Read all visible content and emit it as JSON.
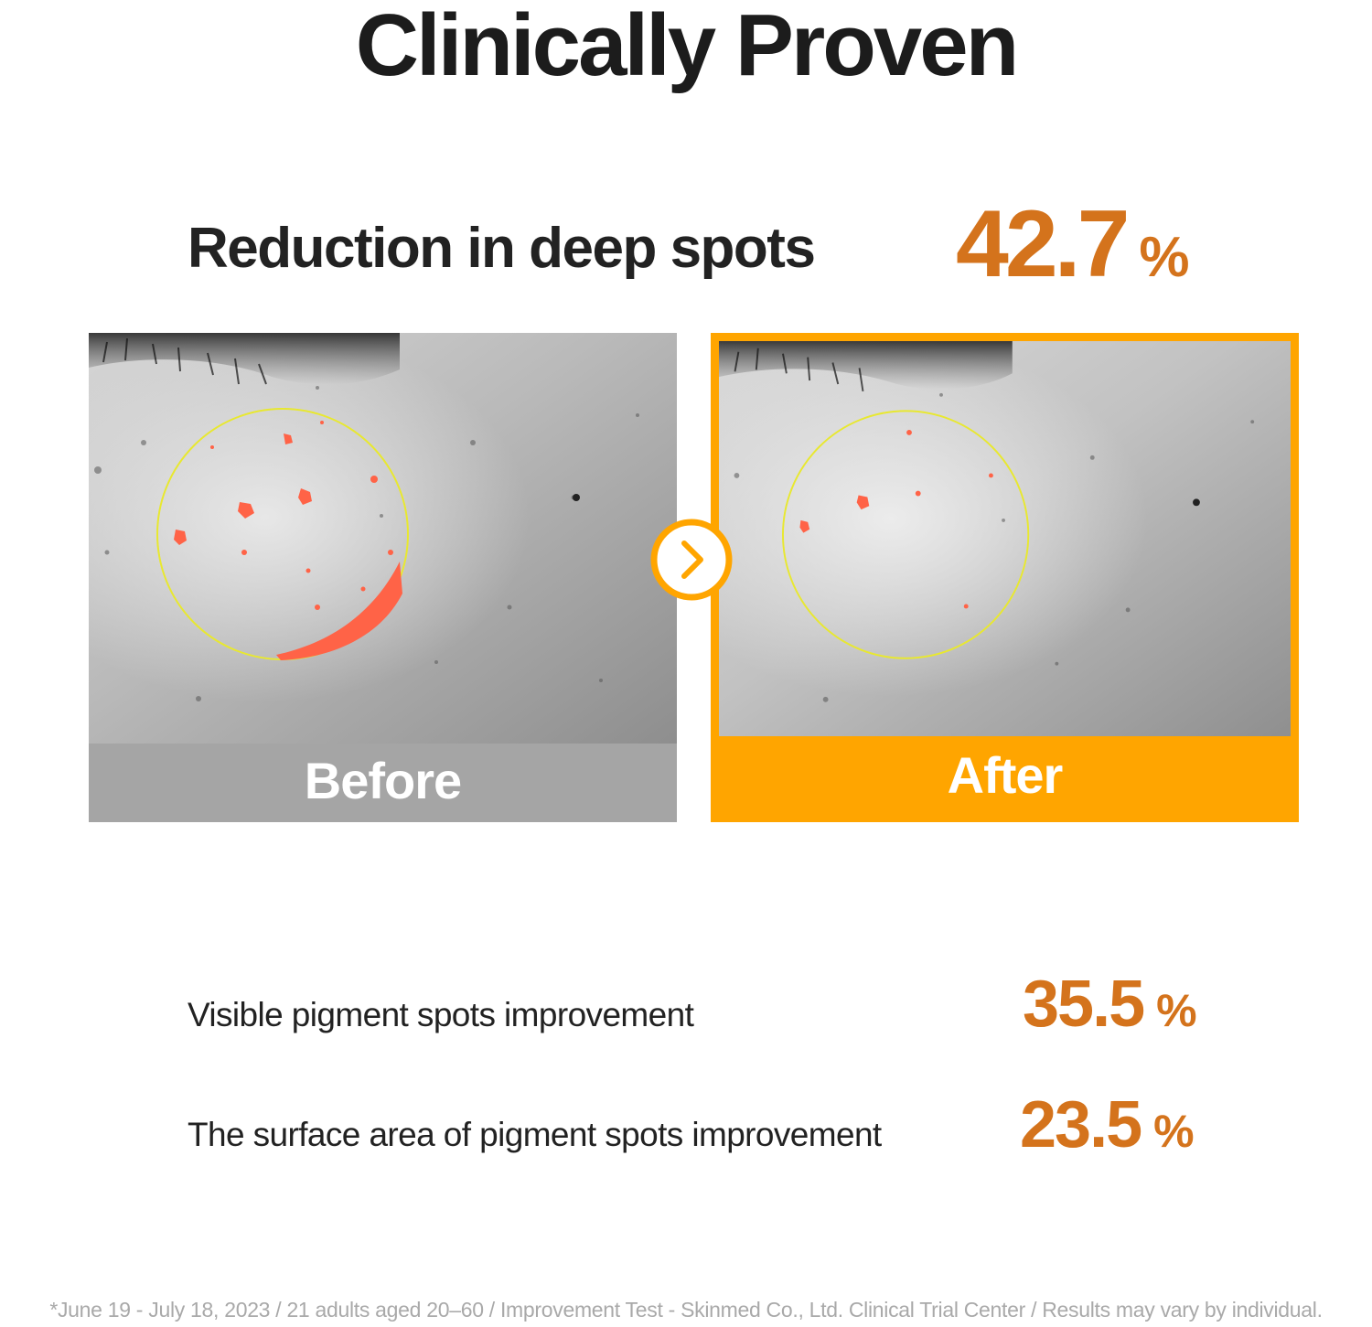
{
  "colors": {
    "accent": "#d4731c",
    "after_frame": "#ffa500",
    "before_caption_bg": "#a5a5a5",
    "spot_marker": "#ff6347",
    "ring": "#e8e830"
  },
  "page_title": "Clinically Proven",
  "headline": {
    "label": "Reduction in deep spots",
    "value": "42.7",
    "unit": "%"
  },
  "comparison": {
    "before_label": "Before",
    "after_label": "After",
    "arrow_icon": "chevron-right-icon"
  },
  "stats": [
    {
      "label": "Visible pigment spots improvement",
      "value": "35.5",
      "unit": "%"
    },
    {
      "label": "The surface area of pigment spots improvement",
      "value": "23.5",
      "unit": "%"
    }
  ],
  "footnote": "*June 19 - July 18, 2023 / 21 adults aged 20–60 / Improvement Test - Skinmed Co., Ltd. Clinical Trial Center / Results may vary by individual."
}
